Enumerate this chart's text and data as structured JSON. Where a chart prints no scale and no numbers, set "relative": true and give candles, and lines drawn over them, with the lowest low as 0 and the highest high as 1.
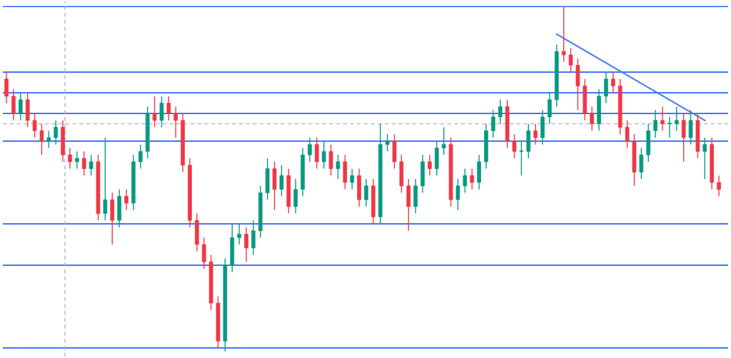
{
  "chart_data": {
    "type": "candlestick",
    "relative": true,
    "categories": [
      null,
      null,
      null,
      null,
      null,
      null,
      null,
      null,
      null,
      null,
      null,
      null,
      null,
      null,
      null,
      null,
      null,
      null,
      null,
      null,
      null,
      null,
      null,
      null,
      null,
      null,
      null,
      null,
      null,
      null,
      null,
      null,
      null,
      null,
      null,
      null,
      null,
      null,
      null,
      null,
      null,
      null,
      null,
      null,
      null,
      null,
      null,
      null,
      null,
      null,
      null,
      null,
      null,
      null,
      null,
      null,
      null,
      null,
      null,
      null,
      null,
      null,
      null,
      null,
      null,
      null,
      null,
      null,
      null,
      null,
      null,
      null,
      null,
      null,
      null,
      null,
      null,
      null,
      null,
      null,
      null,
      null,
      null,
      null,
      null,
      null,
      null,
      null,
      null,
      null,
      null,
      null,
      null,
      null,
      null,
      null,
      null,
      null,
      null,
      null,
      null,
      null
    ],
    "colors": [
      "#f23645",
      "#f23645",
      "#089981",
      "#f23645",
      "#f23645",
      "#f23645",
      "#089981",
      "#089981",
      "#f23645",
      "#f23645",
      "#089981",
      "#f23645",
      "#089981",
      "#f23645",
      "#089981",
      "#f23645",
      "#089981",
      "#f23645",
      "#089981",
      "#089981",
      "#089981",
      "#f23645",
      "#089981",
      "#f23645",
      "#f23645",
      "#f23645",
      "#f23645",
      "#f23645",
      "#f23645",
      "#f23645",
      "#f23645",
      "#089981",
      "#089981",
      "#089981",
      "#f23645",
      "#089981",
      "#089981",
      "#089981",
      "#f23645",
      "#089981",
      "#f23645",
      "#089981",
      "#089981",
      "#089981",
      "#f23645",
      "#089981",
      "#f23645",
      "#089981",
      "#f23645",
      "#089981",
      "#f23645",
      "#089981",
      "#f23645",
      "#089981",
      "#089981",
      "#f23645",
      "#f23645",
      "#f23645",
      "#089981",
      "#089981",
      "#f23645",
      "#089981",
      "#089981",
      "#f23645",
      "#089981",
      "#089981",
      "#f23645",
      "#089981",
      "#089981",
      "#089981",
      "#089981",
      "#f23645",
      "#f23645",
      "#089981",
      "#089981",
      "#f23645",
      "#089981",
      "#089981",
      "#089981",
      "#f23645",
      "#f23645",
      "#f23645",
      "#f23645",
      "#f23645",
      "#089981",
      "#089981",
      "#f23645",
      "#f23645",
      "#f23645",
      "#f23645",
      "#089981",
      "#089981",
      "#089981",
      "#f23645",
      "#089981",
      "#089981",
      "#f23645",
      "#089981",
      "#f23645",
      "#089981",
      "#f23645",
      "#f23645"
    ],
    "ohlc": [
      [
        0.79,
        0.81,
        0.72,
        0.74
      ],
      [
        0.74,
        0.76,
        0.67,
        0.69
      ],
      [
        0.69,
        0.75,
        0.67,
        0.73
      ],
      [
        0.73,
        0.75,
        0.65,
        0.67
      ],
      [
        0.67,
        0.69,
        0.62,
        0.64
      ],
      [
        0.64,
        0.66,
        0.57,
        0.61
      ],
      [
        0.61,
        0.64,
        0.59,
        0.62
      ],
      [
        0.62,
        0.67,
        0.6,
        0.65
      ],
      [
        0.65,
        0.67,
        0.55,
        0.57
      ],
      [
        0.57,
        0.59,
        0.53,
        0.55
      ],
      [
        0.55,
        0.58,
        0.53,
        0.56
      ],
      [
        0.56,
        0.58,
        0.51,
        0.53
      ],
      [
        0.53,
        0.57,
        0.51,
        0.55
      ],
      [
        0.55,
        0.57,
        0.38,
        0.4
      ],
      [
        0.4,
        0.62,
        0.38,
        0.44
      ],
      [
        0.44,
        0.46,
        0.31,
        0.38
      ],
      [
        0.38,
        0.47,
        0.36,
        0.45
      ],
      [
        0.45,
        0.47,
        0.41,
        0.43
      ],
      [
        0.43,
        0.57,
        0.41,
        0.55
      ],
      [
        0.55,
        0.6,
        0.53,
        0.58
      ],
      [
        0.58,
        0.71,
        0.56,
        0.69
      ],
      [
        0.69,
        0.74,
        0.65,
        0.67
      ],
      [
        0.67,
        0.74,
        0.65,
        0.72
      ],
      [
        0.72,
        0.74,
        0.67,
        0.69
      ],
      [
        0.69,
        0.71,
        0.62,
        0.67
      ],
      [
        0.67,
        0.69,
        0.52,
        0.54
      ],
      [
        0.54,
        0.56,
        0.36,
        0.38
      ],
      [
        0.38,
        0.4,
        0.29,
        0.31
      ],
      [
        0.31,
        0.33,
        0.24,
        0.26
      ],
      [
        0.26,
        0.28,
        0.12,
        0.14
      ],
      [
        0.14,
        0.16,
        0.01,
        0.03
      ],
      [
        0.03,
        0.27,
        0.0,
        0.25
      ],
      [
        0.25,
        0.37,
        0.23,
        0.33
      ],
      [
        0.33,
        0.37,
        0.31,
        0.34
      ],
      [
        0.34,
        0.36,
        0.26,
        0.3
      ],
      [
        0.3,
        0.38,
        0.28,
        0.35
      ],
      [
        0.35,
        0.48,
        0.33,
        0.46
      ],
      [
        0.46,
        0.56,
        0.44,
        0.53
      ],
      [
        0.53,
        0.55,
        0.41,
        0.47
      ],
      [
        0.47,
        0.54,
        0.45,
        0.51
      ],
      [
        0.51,
        0.53,
        0.4,
        0.42
      ],
      [
        0.42,
        0.5,
        0.4,
        0.47
      ],
      [
        0.47,
        0.59,
        0.45,
        0.57
      ],
      [
        0.57,
        0.62,
        0.55,
        0.6
      ],
      [
        0.6,
        0.62,
        0.53,
        0.55
      ],
      [
        0.55,
        0.61,
        0.53,
        0.58
      ],
      [
        0.58,
        0.6,
        0.51,
        0.53
      ],
      [
        0.53,
        0.57,
        0.5,
        0.55
      ],
      [
        0.55,
        0.57,
        0.47,
        0.49
      ],
      [
        0.49,
        0.53,
        0.47,
        0.51
      ],
      [
        0.51,
        0.53,
        0.42,
        0.44
      ],
      [
        0.44,
        0.5,
        0.42,
        0.48
      ],
      [
        0.48,
        0.5,
        0.37,
        0.39
      ],
      [
        0.39,
        0.66,
        0.37,
        0.6
      ],
      [
        0.6,
        0.63,
        0.58,
        0.61
      ],
      [
        0.61,
        0.63,
        0.53,
        0.55
      ],
      [
        0.55,
        0.57,
        0.46,
        0.48
      ],
      [
        0.48,
        0.5,
        0.35,
        0.42
      ],
      [
        0.42,
        0.5,
        0.4,
        0.48
      ],
      [
        0.48,
        0.57,
        0.46,
        0.55
      ],
      [
        0.55,
        0.57,
        0.51,
        0.53
      ],
      [
        0.53,
        0.61,
        0.51,
        0.59
      ],
      [
        0.59,
        0.65,
        0.57,
        0.6
      ],
      [
        0.6,
        0.62,
        0.42,
        0.44
      ],
      [
        0.44,
        0.5,
        0.41,
        0.48
      ],
      [
        0.48,
        0.53,
        0.46,
        0.51
      ],
      [
        0.51,
        0.53,
        0.47,
        0.49
      ],
      [
        0.49,
        0.57,
        0.47,
        0.55
      ],
      [
        0.55,
        0.66,
        0.53,
        0.64
      ],
      [
        0.64,
        0.7,
        0.62,
        0.68
      ],
      [
        0.68,
        0.73,
        0.66,
        0.71
      ],
      [
        0.71,
        0.73,
        0.59,
        0.61
      ],
      [
        0.61,
        0.63,
        0.56,
        0.58
      ],
      [
        0.58,
        0.61,
        0.51,
        0.58
      ],
      [
        0.58,
        0.66,
        0.56,
        0.64
      ],
      [
        0.64,
        0.66,
        0.6,
        0.62
      ],
      [
        0.62,
        0.7,
        0.6,
        0.68
      ],
      [
        0.68,
        0.75,
        0.66,
        0.73
      ],
      [
        0.73,
        0.89,
        0.71,
        0.87
      ],
      [
        0.87,
        1.0,
        0.84,
        0.86
      ],
      [
        0.86,
        0.88,
        0.81,
        0.83
      ],
      [
        0.83,
        0.85,
        0.7,
        0.77
      ],
      [
        0.77,
        0.79,
        0.67,
        0.69
      ],
      [
        0.69,
        0.71,
        0.64,
        0.66
      ],
      [
        0.66,
        0.76,
        0.64,
        0.74
      ],
      [
        0.74,
        0.81,
        0.72,
        0.79
      ],
      [
        0.79,
        0.81,
        0.75,
        0.77
      ],
      [
        0.77,
        0.79,
        0.63,
        0.65
      ],
      [
        0.65,
        0.67,
        0.59,
        0.61
      ],
      [
        0.61,
        0.63,
        0.48,
        0.52
      ],
      [
        0.52,
        0.59,
        0.5,
        0.57
      ],
      [
        0.57,
        0.66,
        0.55,
        0.64
      ],
      [
        0.64,
        0.7,
        0.62,
        0.67
      ],
      [
        0.67,
        0.71,
        0.64,
        0.66
      ],
      [
        0.66,
        0.68,
        0.62,
        0.66
      ],
      [
        0.66,
        0.71,
        0.64,
        0.67
      ],
      [
        0.67,
        0.69,
        0.55,
        0.62
      ],
      [
        0.62,
        0.7,
        0.6,
        0.67
      ],
      [
        0.67,
        0.69,
        0.56,
        0.58
      ],
      [
        0.58,
        0.62,
        0.5,
        0.6
      ],
      [
        0.6,
        0.62,
        0.47,
        0.49
      ],
      [
        0.49,
        0.51,
        0.45,
        0.47
      ]
    ],
    "series": [
      {
        "type": "line",
        "color": "#4d7cf5",
        "values": [
          null,
          null,
          null,
          null,
          null,
          null,
          null,
          null,
          null,
          null,
          null,
          null,
          null,
          null,
          null,
          null,
          null,
          null,
          null,
          null,
          null,
          null,
          null,
          null,
          null,
          null,
          null,
          null,
          null,
          null,
          null,
          null,
          null,
          null,
          null,
          null,
          null,
          null,
          null,
          null,
          null,
          null,
          null,
          null,
          null,
          null,
          null,
          null,
          null,
          null,
          null,
          null,
          null,
          null,
          null,
          null,
          null,
          null,
          null,
          null,
          null,
          null,
          null,
          null,
          null,
          null,
          null,
          null,
          null,
          null,
          null,
          null,
          null,
          null,
          null,
          null,
          null,
          null,
          0.92,
          null,
          null,
          null,
          null,
          null,
          null,
          null,
          null,
          null,
          null,
          null,
          null,
          null,
          null,
          null,
          null,
          null,
          null,
          null,
          null,
          0.67,
          null,
          null
        ]
      }
    ],
    "ref_lines": [
      {
        "axis": "y",
        "value": 1.0,
        "color": "#2962ff"
      },
      {
        "axis": "y",
        "value": 0.81,
        "color": "#2962ff"
      },
      {
        "axis": "y",
        "value": 0.75,
        "color": "#2962ff"
      },
      {
        "axis": "y",
        "value": 0.69,
        "color": "#2962ff"
      },
      {
        "axis": "y",
        "value": 0.61,
        "color": "#2962ff"
      },
      {
        "axis": "y",
        "value": 0.37,
        "color": "#2962ff"
      },
      {
        "axis": "y",
        "value": 0.25,
        "color": "#2962ff"
      },
      {
        "axis": "y",
        "value": 0.01,
        "color": "#2962ff"
      },
      {
        "axis": "y",
        "value": 0.66,
        "color": "#b2b5be",
        "line_style": "dashed"
      }
    ]
  }
}
